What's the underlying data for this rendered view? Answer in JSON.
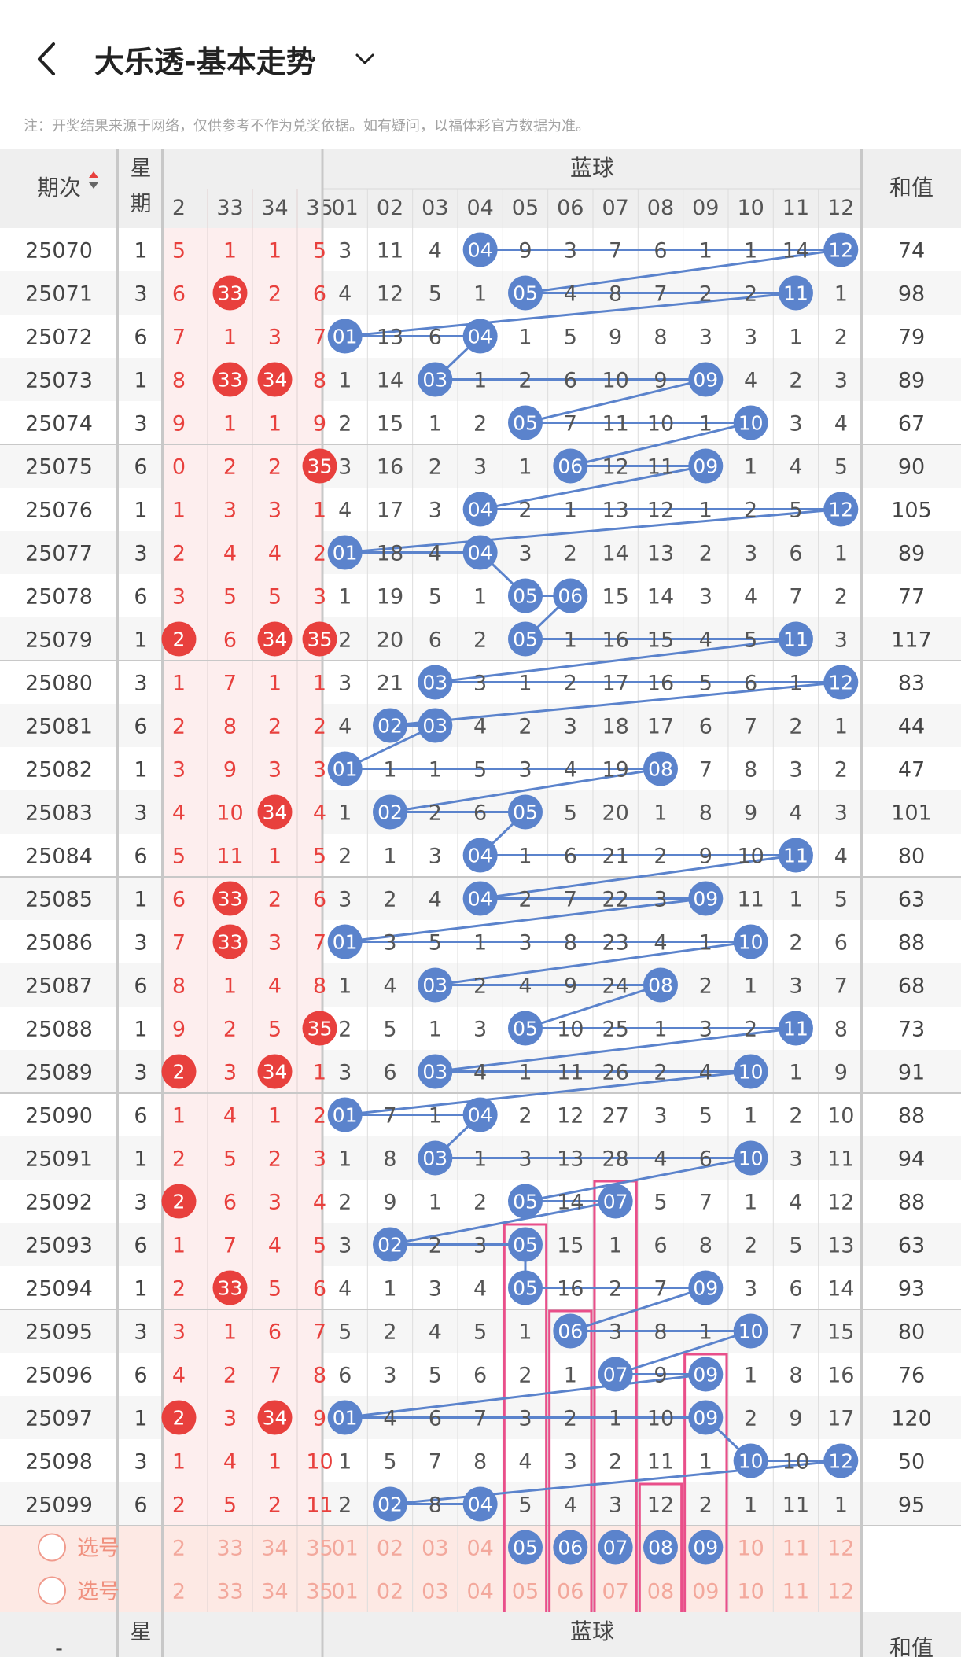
{
  "header": {
    "title": "大乐透-基本走势",
    "note": "注：开奖结果来源于网络，仅供参考不作为兑奖依据。如有疑问，以福体彩官方数据为准。"
  },
  "columns": {
    "issue": "期次",
    "week": "星期",
    "blue_title": "蓝球",
    "sum": "和值",
    "front_visible": [
      "2",
      "33",
      "34",
      "35"
    ],
    "blue": [
      "01",
      "02",
      "03",
      "04",
      "05",
      "06",
      "07",
      "08",
      "09",
      "10",
      "11",
      "12"
    ]
  },
  "colors": {
    "red": "#e8403d",
    "blue": "#5b83cc",
    "pink_box": "#e94f8a",
    "red_zone_bg": "#fdeeee",
    "select_bg": "#fde9e4"
  },
  "rows": [
    {
      "issue": "25070",
      "week": "1",
      "front": [
        "5",
        "1",
        "1",
        "5"
      ],
      "front_hit": [],
      "blue": [
        "3",
        "11",
        "4",
        "04",
        "9",
        "3",
        "7",
        "6",
        "1",
        "1",
        "14",
        "12"
      ],
      "blue_hit": [
        3,
        11
      ],
      "sum": "74"
    },
    {
      "issue": "25071",
      "week": "3",
      "front": [
        "6",
        "33",
        "2",
        "6"
      ],
      "front_hit": [
        1
      ],
      "blue": [
        "4",
        "12",
        "5",
        "1",
        "05",
        "4",
        "8",
        "7",
        "2",
        "2",
        "11",
        "1"
      ],
      "blue_hit": [
        4,
        10
      ],
      "sum": "98"
    },
    {
      "issue": "25072",
      "week": "6",
      "front": [
        "7",
        "1",
        "3",
        "7"
      ],
      "front_hit": [],
      "blue": [
        "01",
        "13",
        "6",
        "04",
        "1",
        "5",
        "9",
        "8",
        "3",
        "3",
        "1",
        "2"
      ],
      "blue_hit": [
        0,
        3
      ],
      "sum": "79"
    },
    {
      "issue": "25073",
      "week": "1",
      "front": [
        "8",
        "33",
        "34",
        "8"
      ],
      "front_hit": [
        1,
        2
      ],
      "blue": [
        "1",
        "14",
        "03",
        "1",
        "2",
        "6",
        "10",
        "9",
        "09",
        "4",
        "2",
        "3"
      ],
      "blue_hit": [
        2,
        8
      ],
      "sum": "89"
    },
    {
      "issue": "25074",
      "week": "3",
      "front": [
        "9",
        "1",
        "1",
        "9"
      ],
      "front_hit": [],
      "blue": [
        "2",
        "15",
        "1",
        "2",
        "05",
        "7",
        "11",
        "10",
        "1",
        "10",
        "3",
        "4"
      ],
      "blue_hit": [
        4,
        9
      ],
      "sum": "67"
    },
    {
      "issue": "25075",
      "week": "6",
      "front": [
        "0",
        "2",
        "2",
        "35"
      ],
      "front_hit": [
        3
      ],
      "blue": [
        "3",
        "16",
        "2",
        "3",
        "1",
        "06",
        "12",
        "11",
        "09",
        "1",
        "4",
        "5"
      ],
      "blue_hit": [
        5,
        8
      ],
      "sum": "90"
    },
    {
      "issue": "25076",
      "week": "1",
      "front": [
        "1",
        "3",
        "3",
        "1"
      ],
      "front_hit": [],
      "blue": [
        "4",
        "17",
        "3",
        "04",
        "2",
        "1",
        "13",
        "12",
        "1",
        "2",
        "5",
        "12"
      ],
      "blue_hit": [
        3,
        11
      ],
      "sum": "105"
    },
    {
      "issue": "25077",
      "week": "3",
      "front": [
        "2",
        "4",
        "4",
        "2"
      ],
      "front_hit": [],
      "blue": [
        "01",
        "18",
        "4",
        "04",
        "3",
        "2",
        "14",
        "13",
        "2",
        "3",
        "6",
        "1"
      ],
      "blue_hit": [
        0,
        3
      ],
      "sum": "89"
    },
    {
      "issue": "25078",
      "week": "6",
      "front": [
        "3",
        "5",
        "5",
        "3"
      ],
      "front_hit": [],
      "blue": [
        "1",
        "19",
        "5",
        "1",
        "05",
        "06",
        "15",
        "14",
        "3",
        "4",
        "7",
        "2"
      ],
      "blue_hit": [
        4,
        5
      ],
      "sum": "77"
    },
    {
      "issue": "25079",
      "week": "1",
      "front": [
        "2",
        "6",
        "34",
        "35"
      ],
      "front_hit": [
        0,
        2,
        3
      ],
      "blue": [
        "2",
        "20",
        "6",
        "2",
        "05",
        "1",
        "16",
        "15",
        "4",
        "5",
        "11",
        "3"
      ],
      "blue_hit": [
        4,
        10
      ],
      "sum": "117"
    },
    {
      "issue": "25080",
      "week": "3",
      "front": [
        "1",
        "7",
        "1",
        "1"
      ],
      "front_hit": [],
      "blue": [
        "3",
        "21",
        "03",
        "3",
        "1",
        "2",
        "17",
        "16",
        "5",
        "6",
        "1",
        "12"
      ],
      "blue_hit": [
        2,
        11
      ],
      "sum": "83"
    },
    {
      "issue": "25081",
      "week": "6",
      "front": [
        "2",
        "8",
        "2",
        "2"
      ],
      "front_hit": [],
      "blue": [
        "4",
        "02",
        "03",
        "4",
        "2",
        "3",
        "18",
        "17",
        "6",
        "7",
        "2",
        "1"
      ],
      "blue_hit": [
        1,
        2
      ],
      "sum": "44"
    },
    {
      "issue": "25082",
      "week": "1",
      "front": [
        "3",
        "9",
        "3",
        "3"
      ],
      "front_hit": [],
      "blue": [
        "01",
        "1",
        "1",
        "5",
        "3",
        "4",
        "19",
        "08",
        "7",
        "8",
        "3",
        "2"
      ],
      "blue_hit": [
        0,
        7
      ],
      "sum": "47"
    },
    {
      "issue": "25083",
      "week": "3",
      "front": [
        "4",
        "10",
        "34",
        "4"
      ],
      "front_hit": [
        2
      ],
      "blue": [
        "1",
        "02",
        "2",
        "6",
        "05",
        "5",
        "20",
        "1",
        "8",
        "9",
        "4",
        "3"
      ],
      "blue_hit": [
        1,
        4
      ],
      "sum": "101"
    },
    {
      "issue": "25084",
      "week": "6",
      "front": [
        "5",
        "11",
        "1",
        "5"
      ],
      "front_hit": [],
      "blue": [
        "2",
        "1",
        "3",
        "04",
        "1",
        "6",
        "21",
        "2",
        "9",
        "10",
        "11",
        "4"
      ],
      "blue_hit": [
        3,
        10
      ],
      "sum": "80"
    },
    {
      "issue": "25085",
      "week": "1",
      "front": [
        "6",
        "33",
        "2",
        "6"
      ],
      "front_hit": [
        1
      ],
      "blue": [
        "3",
        "2",
        "4",
        "04",
        "2",
        "7",
        "22",
        "3",
        "09",
        "11",
        "1",
        "5"
      ],
      "blue_hit": [
        3,
        8
      ],
      "sum": "63"
    },
    {
      "issue": "25086",
      "week": "3",
      "front": [
        "7",
        "33",
        "3",
        "7"
      ],
      "front_hit": [
        1
      ],
      "blue": [
        "01",
        "3",
        "5",
        "1",
        "3",
        "8",
        "23",
        "4",
        "1",
        "10",
        "2",
        "6"
      ],
      "blue_hit": [
        0,
        9
      ],
      "sum": "88"
    },
    {
      "issue": "25087",
      "week": "6",
      "front": [
        "8",
        "1",
        "4",
        "8"
      ],
      "front_hit": [],
      "blue": [
        "1",
        "4",
        "03",
        "2",
        "4",
        "9",
        "24",
        "08",
        "2",
        "1",
        "3",
        "7"
      ],
      "blue_hit": [
        2,
        7
      ],
      "sum": "68"
    },
    {
      "issue": "25088",
      "week": "1",
      "front": [
        "9",
        "2",
        "5",
        "35"
      ],
      "front_hit": [
        3
      ],
      "blue": [
        "2",
        "5",
        "1",
        "3",
        "05",
        "10",
        "25",
        "1",
        "3",
        "2",
        "11",
        "8"
      ],
      "blue_hit": [
        4,
        10
      ],
      "sum": "73"
    },
    {
      "issue": "25089",
      "week": "3",
      "front": [
        "2",
        "3",
        "34",
        "1"
      ],
      "front_hit": [
        0,
        2
      ],
      "blue": [
        "3",
        "6",
        "03",
        "4",
        "1",
        "11",
        "26",
        "2",
        "4",
        "10",
        "1",
        "9"
      ],
      "blue_hit": [
        2,
        9
      ],
      "sum": "91"
    },
    {
      "issue": "25090",
      "week": "6",
      "front": [
        "1",
        "4",
        "1",
        "2"
      ],
      "front_hit": [],
      "blue": [
        "01",
        "7",
        "1",
        "04",
        "2",
        "12",
        "27",
        "3",
        "5",
        "1",
        "2",
        "10"
      ],
      "blue_hit": [
        0,
        3
      ],
      "sum": "88"
    },
    {
      "issue": "25091",
      "week": "1",
      "front": [
        "2",
        "5",
        "2",
        "3"
      ],
      "front_hit": [],
      "blue": [
        "1",
        "8",
        "03",
        "1",
        "3",
        "13",
        "28",
        "4",
        "6",
        "10",
        "3",
        "11"
      ],
      "blue_hit": [
        2,
        9
      ],
      "sum": "94"
    },
    {
      "issue": "25092",
      "week": "3",
      "front": [
        "2",
        "6",
        "3",
        "4"
      ],
      "front_hit": [
        0
      ],
      "blue": [
        "2",
        "9",
        "1",
        "2",
        "05",
        "14",
        "07",
        "5",
        "7",
        "1",
        "4",
        "12"
      ],
      "blue_hit": [
        4,
        6
      ],
      "sum": "88"
    },
    {
      "issue": "25093",
      "week": "6",
      "front": [
        "1",
        "7",
        "4",
        "5"
      ],
      "front_hit": [],
      "blue": [
        "3",
        "02",
        "2",
        "3",
        "05",
        "15",
        "1",
        "6",
        "8",
        "2",
        "5",
        "13"
      ],
      "blue_hit": [
        1,
        4
      ],
      "sum": "63"
    },
    {
      "issue": "25094",
      "week": "1",
      "front": [
        "2",
        "33",
        "5",
        "6"
      ],
      "front_hit": [
        1
      ],
      "blue": [
        "4",
        "1",
        "3",
        "4",
        "05",
        "16",
        "2",
        "7",
        "09",
        "3",
        "6",
        "14"
      ],
      "blue_hit": [
        4,
        8
      ],
      "sum": "93"
    },
    {
      "issue": "25095",
      "week": "3",
      "front": [
        "3",
        "1",
        "6",
        "7"
      ],
      "front_hit": [],
      "blue": [
        "5",
        "2",
        "4",
        "5",
        "1",
        "06",
        "3",
        "8",
        "1",
        "10",
        "7",
        "15"
      ],
      "blue_hit": [
        5,
        9
      ],
      "sum": "80"
    },
    {
      "issue": "25096",
      "week": "6",
      "front": [
        "4",
        "2",
        "7",
        "8"
      ],
      "front_hit": [],
      "blue": [
        "6",
        "3",
        "5",
        "6",
        "2",
        "1",
        "07",
        "9",
        "09",
        "1",
        "8",
        "16"
      ],
      "blue_hit": [
        6,
        8
      ],
      "sum": "76"
    },
    {
      "issue": "25097",
      "week": "1",
      "front": [
        "2",
        "3",
        "34",
        "9"
      ],
      "front_hit": [
        0,
        2
      ],
      "blue": [
        "01",
        "4",
        "6",
        "7",
        "3",
        "2",
        "1",
        "10",
        "09",
        "2",
        "9",
        "17"
      ],
      "blue_hit": [
        0,
        8
      ],
      "sum": "120"
    },
    {
      "issue": "25098",
      "week": "3",
      "front": [
        "1",
        "4",
        "1",
        "10"
      ],
      "front_hit": [],
      "blue": [
        "1",
        "5",
        "7",
        "8",
        "4",
        "3",
        "2",
        "11",
        "1",
        "10",
        "10",
        "12"
      ],
      "blue_hit": [
        9,
        11
      ],
      "sum": "50"
    },
    {
      "issue": "25099",
      "week": "6",
      "front": [
        "2",
        "5",
        "2",
        "11"
      ],
      "front_hit": [],
      "blue": [
        "2",
        "02",
        "8",
        "04",
        "5",
        "4",
        "3",
        "12",
        "2",
        "1",
        "11",
        "1"
      ],
      "blue_hit": [
        1,
        3
      ],
      "sum": "95"
    }
  ],
  "select_rows": [
    {
      "label": "选号",
      "front": [
        "2",
        "33",
        "34",
        "35"
      ],
      "blue": [
        "01",
        "02",
        "03",
        "04",
        "05",
        "06",
        "07",
        "08",
        "09",
        "10",
        "11",
        "12"
      ],
      "blue_hit": [
        4,
        5,
        6,
        7,
        8
      ]
    },
    {
      "label": "选号",
      "front": [
        "2",
        "33",
        "34",
        "35"
      ],
      "blue": [
        "01",
        "02",
        "03",
        "04",
        "05",
        "06",
        "07",
        "08",
        "09",
        "10",
        "11",
        "12"
      ],
      "blue_hit": []
    }
  ],
  "footer": {
    "issue": "-",
    "week": "星",
    "blue_title": "蓝球",
    "sum": "和值"
  }
}
